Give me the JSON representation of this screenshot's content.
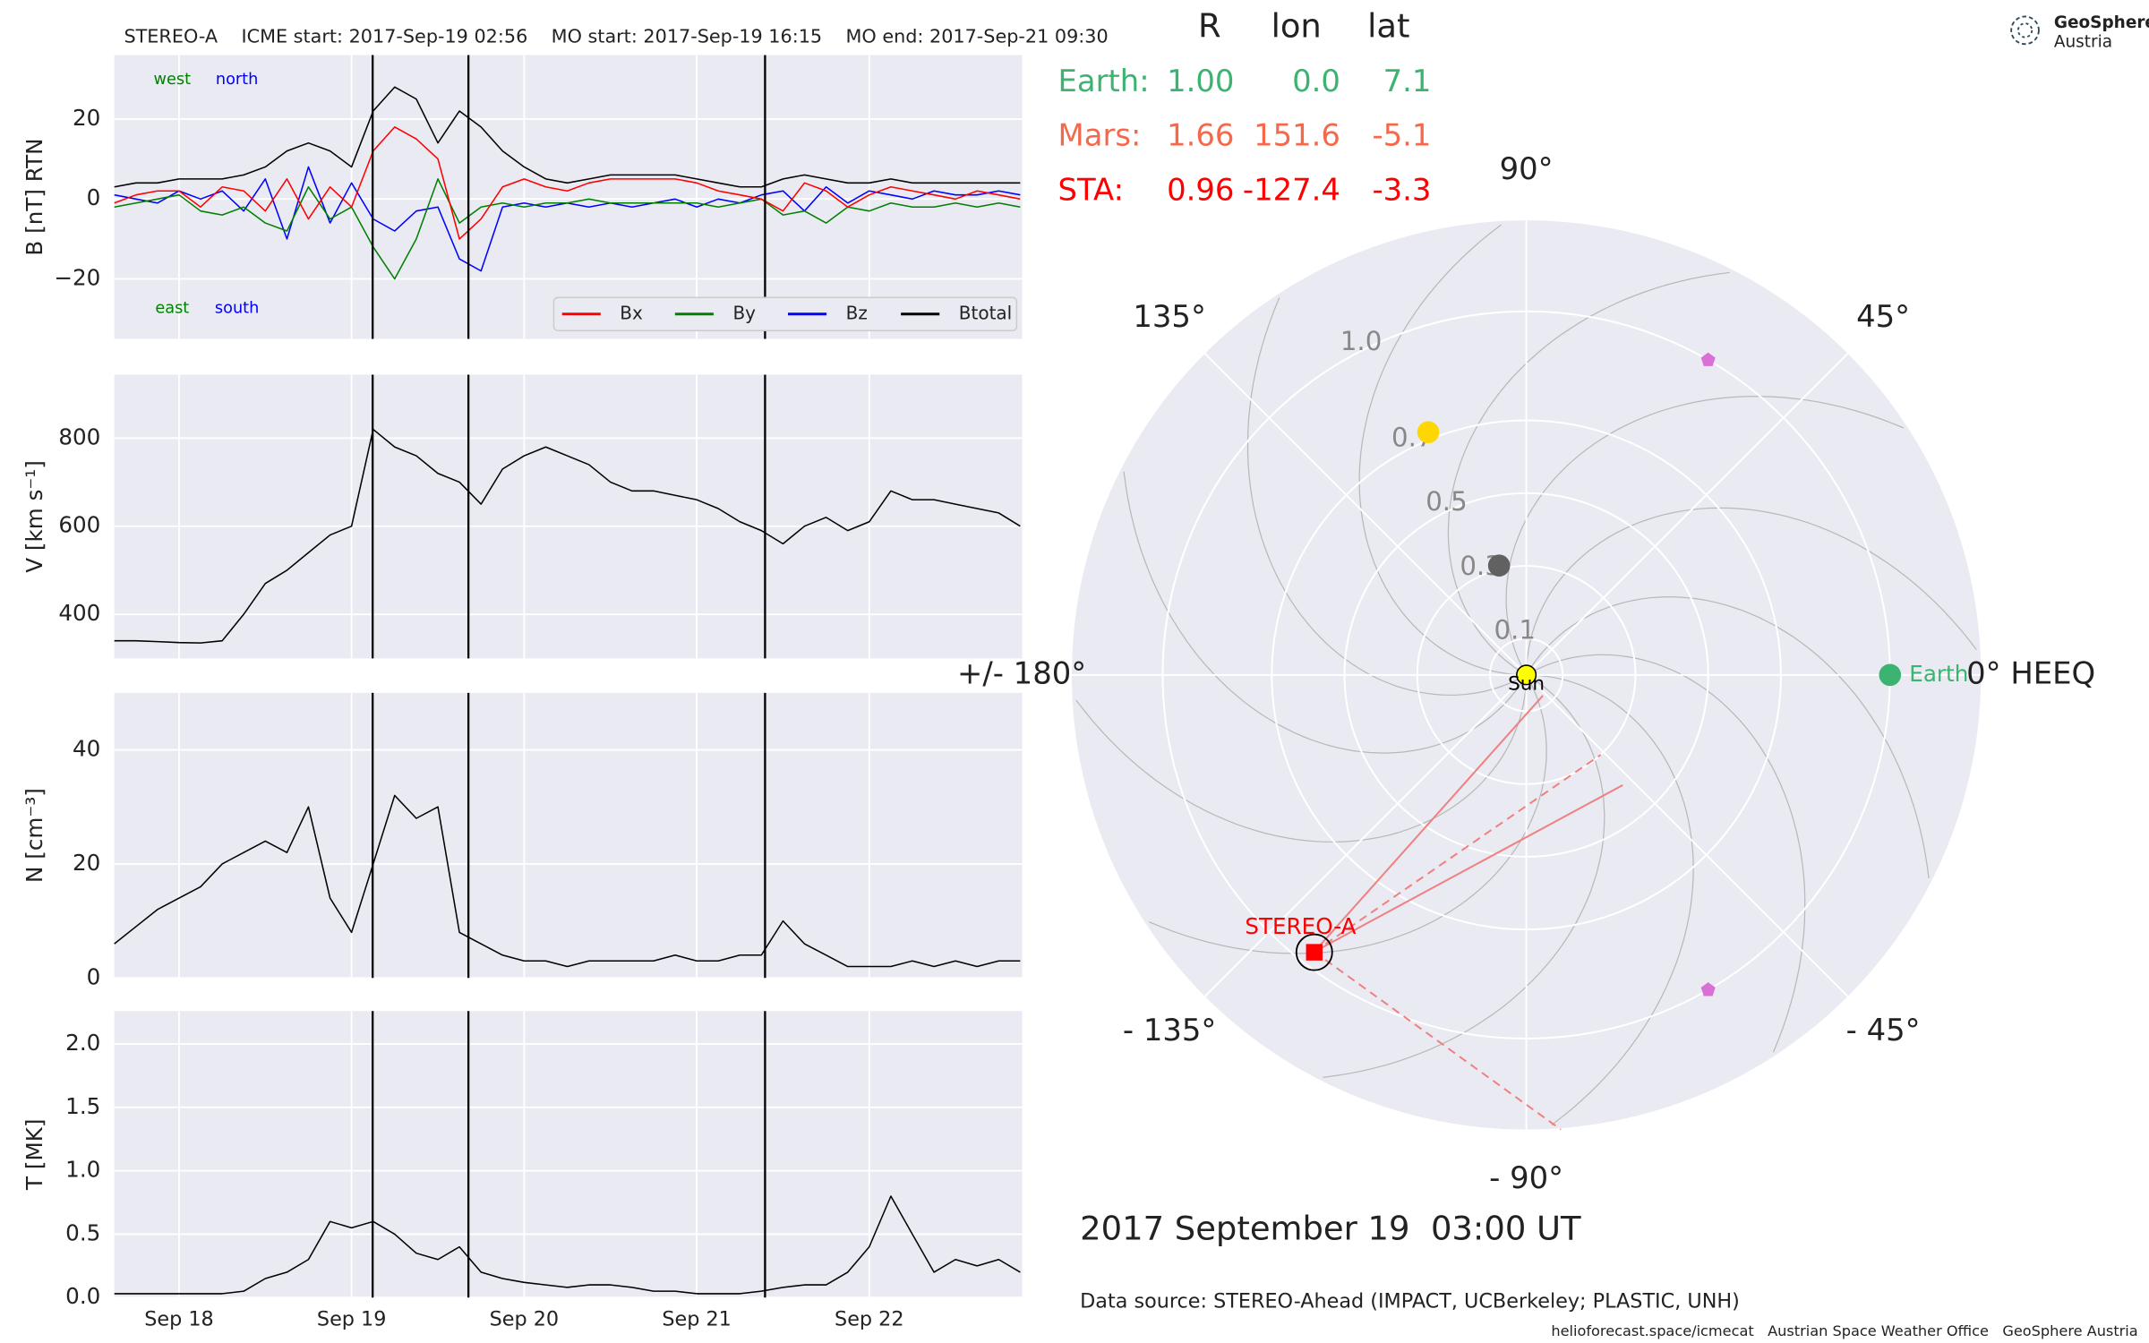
{
  "chart_data": [
    {
      "type": "line",
      "title": "STEREO-A    ICME start: 2017-Sep-19 02:56    MO start: 2017-Sep-19 16:15    MO end: 2017-Sep-21 09:30",
      "y_label": "B [nT] RTN",
      "x": [
        17.625,
        17.75,
        17.875,
        18.0,
        18.125,
        18.25,
        18.375,
        18.5,
        18.625,
        18.75,
        18.875,
        19.0,
        19.125,
        19.25,
        19.375,
        19.5,
        19.625,
        19.75,
        19.875,
        20.0,
        20.125,
        20.25,
        20.375,
        20.5,
        20.625,
        20.75,
        20.875,
        21.0,
        21.125,
        21.25,
        21.375,
        21.5,
        21.625,
        21.75,
        21.875,
        22.0,
        22.125,
        22.25,
        22.375,
        22.5,
        22.625,
        22.75,
        22.875
      ],
      "xlim": [
        17.625,
        22.886
      ],
      "xticks": [
        18,
        19,
        20,
        21,
        22
      ],
      "ylim": [
        -35,
        36
      ],
      "yticks": [
        {
          "value": -20,
          "label": "−20"
        },
        0,
        20
      ],
      "vlines": [
        19.122,
        19.677,
        21.396
      ],
      "legend": "lower right",
      "annotations": [
        {
          "text": "west",
          "color": "#008000"
        },
        {
          "text": "north",
          "color": "#0000ff"
        },
        {
          "text": "east",
          "color": "#008000"
        },
        {
          "text": "south",
          "color": "#0000ff"
        }
      ],
      "series": [
        {
          "name": "Bx",
          "color": "#ff0000",
          "values": [
            -1,
            1,
            2,
            2,
            -2,
            3,
            2,
            -3,
            5,
            -5,
            3,
            -2,
            12,
            18,
            15,
            10,
            -10,
            -5,
            3,
            5,
            3,
            2,
            4,
            5,
            5,
            5,
            5,
            4,
            2,
            1,
            0,
            -3,
            4,
            2,
            -2,
            1,
            3,
            2,
            1,
            0,
            2,
            1,
            0
          ]
        },
        {
          "name": "By",
          "color": "#008000",
          "values": [
            -2,
            -1,
            0,
            1,
            -3,
            -4,
            -2,
            -6,
            -8,
            3,
            -5,
            -2,
            -12,
            -20,
            -10,
            5,
            -6,
            -2,
            -1,
            -2,
            -1,
            -1,
            0,
            -1,
            -1,
            -1,
            -1,
            -1,
            -2,
            -1,
            0,
            -4,
            -3,
            -6,
            -2,
            -3,
            -1,
            -2,
            -2,
            -1,
            -2,
            -1,
            -2
          ]
        },
        {
          "name": "Bz",
          "color": "#0000ff",
          "values": [
            1,
            0,
            -1,
            2,
            0,
            2,
            -3,
            5,
            -10,
            8,
            -6,
            4,
            -5,
            -8,
            -3,
            -2,
            -15,
            -18,
            -2,
            -1,
            -2,
            -1,
            -2,
            -1,
            -2,
            -1,
            0,
            -2,
            0,
            -1,
            1,
            2,
            -3,
            3,
            -1,
            2,
            1,
            0,
            2,
            1,
            1,
            2,
            1
          ]
        },
        {
          "name": "Btotal",
          "color": "#000000",
          "values": [
            3,
            4,
            4,
            5,
            5,
            5,
            6,
            8,
            12,
            14,
            12,
            8,
            22,
            28,
            25,
            14,
            22,
            18,
            12,
            8,
            5,
            4,
            5,
            6,
            6,
            6,
            6,
            5,
            4,
            3,
            3,
            5,
            6,
            5,
            4,
            4,
            5,
            4,
            4,
            4,
            4,
            4,
            4
          ]
        }
      ]
    },
    {
      "type": "line",
      "y_label": "V [km s⁻¹]",
      "x": [
        17.625,
        17.75,
        17.875,
        18.0,
        18.125,
        18.25,
        18.375,
        18.5,
        18.625,
        18.75,
        18.875,
        19.0,
        19.125,
        19.25,
        19.375,
        19.5,
        19.625,
        19.75,
        19.875,
        20.0,
        20.125,
        20.25,
        20.375,
        20.5,
        20.625,
        20.75,
        20.875,
        21.0,
        21.125,
        21.25,
        21.375,
        21.5,
        21.625,
        21.75,
        21.875,
        22.0,
        22.125,
        22.25,
        22.375,
        22.5,
        22.625,
        22.75,
        22.875
      ],
      "xlim": [
        17.625,
        22.886
      ],
      "xticks": [
        18,
        19,
        20,
        21,
        22
      ],
      "ylim": [
        300,
        944
      ],
      "yticks": [
        400,
        600,
        800
      ],
      "vlines": [
        19.122,
        19.677,
        21.396
      ],
      "color": "#000000",
      "values": [
        340,
        340,
        338,
        336,
        335,
        340,
        400,
        470,
        500,
        540,
        580,
        600,
        820,
        780,
        760,
        720,
        700,
        650,
        730,
        760,
        780,
        760,
        740,
        700,
        680,
        680,
        670,
        660,
        640,
        610,
        590,
        560,
        600,
        620,
        590,
        610,
        680,
        660,
        660,
        650,
        640,
        630,
        600
      ]
    },
    {
      "type": "line",
      "y_label": "N [cm⁻³]",
      "x": [
        17.625,
        17.75,
        17.875,
        18.0,
        18.125,
        18.25,
        18.375,
        18.5,
        18.625,
        18.75,
        18.875,
        19.0,
        19.125,
        19.25,
        19.375,
        19.5,
        19.625,
        19.75,
        19.875,
        20.0,
        20.125,
        20.25,
        20.375,
        20.5,
        20.625,
        20.75,
        20.875,
        21.0,
        21.125,
        21.25,
        21.375,
        21.5,
        21.625,
        21.75,
        21.875,
        22.0,
        22.125,
        22.25,
        22.375,
        22.5,
        22.625,
        22.75,
        22.875
      ],
      "xlim": [
        17.625,
        22.886
      ],
      "xticks": [
        18,
        19,
        20,
        21,
        22
      ],
      "ylim": [
        0,
        50
      ],
      "yticks": [
        0,
        20,
        40
      ],
      "vlines": [
        19.122,
        19.677,
        21.396
      ],
      "color": "#000000",
      "values": [
        6,
        9,
        12,
        14,
        16,
        20,
        22,
        24,
        22,
        30,
        14,
        8,
        20,
        32,
        28,
        30,
        8,
        6,
        4,
        3,
        3,
        2,
        3,
        3,
        3,
        3,
        4,
        3,
        3,
        4,
        4,
        10,
        6,
        4,
        2,
        2,
        2,
        3,
        2,
        3,
        2,
        3,
        3
      ]
    },
    {
      "type": "line",
      "y_label": "T [MK]",
      "x": [
        17.625,
        17.75,
        17.875,
        18.0,
        18.125,
        18.25,
        18.375,
        18.5,
        18.625,
        18.75,
        18.875,
        19.0,
        19.125,
        19.25,
        19.375,
        19.5,
        19.625,
        19.75,
        19.875,
        20.0,
        20.125,
        20.25,
        20.375,
        20.5,
        20.625,
        20.75,
        20.875,
        21.0,
        21.125,
        21.25,
        21.375,
        21.5,
        21.625,
        21.75,
        21.875,
        22.0,
        22.125,
        22.25,
        22.375,
        22.5,
        22.625,
        22.75,
        22.875
      ],
      "xlim": [
        17.625,
        22.886
      ],
      "xticks": [
        {
          "value": 18,
          "label": "Sep 18"
        },
        {
          "value": 19,
          "label": "Sep 19"
        },
        {
          "value": 20,
          "label": "Sep 20"
        },
        {
          "value": 21,
          "label": "Sep 21"
        },
        {
          "value": 22,
          "label": "Sep 22"
        }
      ],
      "ylim": [
        0,
        2.26
      ],
      "yticks": [
        {
          "value": 0,
          "label": "0.0"
        },
        0.5,
        {
          "value": 1,
          "label": "1.0"
        },
        1.5,
        {
          "value": 2,
          "label": "2.0"
        }
      ],
      "vlines": [
        19.122,
        19.677,
        21.396
      ],
      "color": "#000000",
      "values": [
        0.03,
        0.03,
        0.03,
        0.03,
        0.03,
        0.03,
        0.05,
        0.15,
        0.2,
        0.3,
        0.6,
        0.55,
        0.6,
        0.5,
        0.35,
        0.3,
        0.4,
        0.2,
        0.15,
        0.12,
        0.1,
        0.08,
        0.1,
        0.1,
        0.08,
        0.05,
        0.05,
        0.03,
        0.03,
        0.03,
        0.05,
        0.08,
        0.1,
        0.1,
        0.2,
        0.4,
        0.8,
        0.5,
        0.2,
        0.3,
        0.25,
        0.3,
        0.2
      ]
    },
    {
      "type": "polar",
      "rlim": [
        0,
        1.25
      ],
      "rticks": [
        0.1,
        0.3,
        0.5,
        0.7,
        {
          "value": 1,
          "label": "1.0"
        }
      ],
      "thetaticks": [
        {
          "value": 90,
          "label": "90°"
        },
        {
          "value": 45,
          "label": "45°"
        },
        {
          "value": 0,
          "label": "0° HEEQ"
        },
        {
          "value": -45,
          "label": "- 45°"
        },
        {
          "value": -90,
          "label": "- 90°"
        },
        {
          "value": -135,
          "label": "- 135°"
        },
        {
          "value": 180,
          "label": "+/- 180°"
        },
        {
          "value": 135,
          "label": "135°"
        }
      ],
      "bodies": [
        {
          "name": "Sun",
          "r": 0,
          "lon": 0,
          "color": "#ffff00",
          "marker": "circle"
        },
        {
          "name": "Earth",
          "r": 1.0,
          "lon": 0,
          "color": "#3cb371",
          "marker": "circle"
        },
        {
          "name": null,
          "r": 0.72,
          "lon": 112,
          "color": "#ffd700",
          "marker": "circle"
        },
        {
          "name": null,
          "r": 0.31,
          "lon": 104,
          "color": "#616161",
          "marker": "circle"
        },
        {
          "name": null,
          "r": 1.0,
          "lon": 60,
          "color": "#da70d6",
          "marker": "pentagon"
        },
        {
          "name": null,
          "r": 1.0,
          "lon": -60,
          "color": "#da70d6",
          "marker": "pentagon"
        },
        {
          "name": "STEREO-A",
          "r": 0.96,
          "lon": -127.4,
          "color": "#ff0000",
          "marker": "square"
        }
      ]
    }
  ],
  "info_table": {
    "columns": [
      "R",
      "lon",
      "lat"
    ],
    "rows": [
      {
        "label": "Earth:",
        "color": "#3cb371",
        "cells": [
          "1.00",
          "0.0",
          "7.1"
        ]
      },
      {
        "label": "Mars:",
        "color": "#f4694b",
        "cells": [
          "1.66",
          "151.6",
          "-5.1"
        ]
      },
      {
        "label": "STA:",
        "color": "#ff0000",
        "cells": [
          "0.96",
          "-127.4",
          "-3.3"
        ]
      }
    ]
  },
  "date_label": "2017 September 19  03:00 UT",
  "source": "Data source: STEREO-Ahead (IMPACT, UCBerkeley; PLASTIC, UNH)",
  "footer": "helioforecast.space/icmecat   Austrian Space Weather Office   GeoSphere Austria",
  "logo": {
    "line1": "GeoSphere",
    "line2": "Austria"
  }
}
